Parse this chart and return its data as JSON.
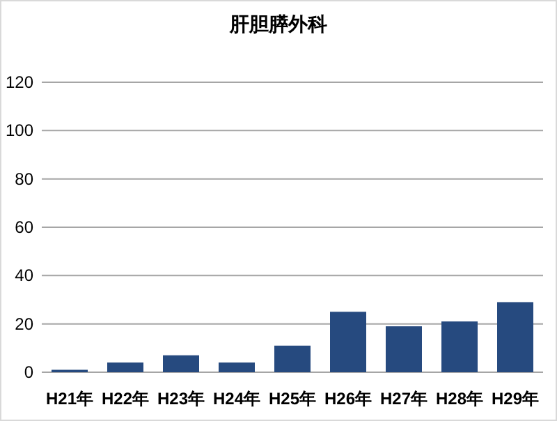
{
  "chart_data": {
    "type": "bar",
    "title": "肝胆膵外科",
    "categories": [
      "H21年",
      "H22年",
      "H23年",
      "H24年",
      "H25年",
      "H26年",
      "H27年",
      "H28年",
      "H29年"
    ],
    "values": [
      1,
      4,
      7,
      4,
      11,
      25,
      19,
      21,
      29
    ],
    "color": "#264a7f",
    "ylim": [
      0,
      120
    ],
    "yticks": [
      0,
      20,
      40,
      60,
      80,
      100,
      120
    ],
    "grid": "y"
  }
}
